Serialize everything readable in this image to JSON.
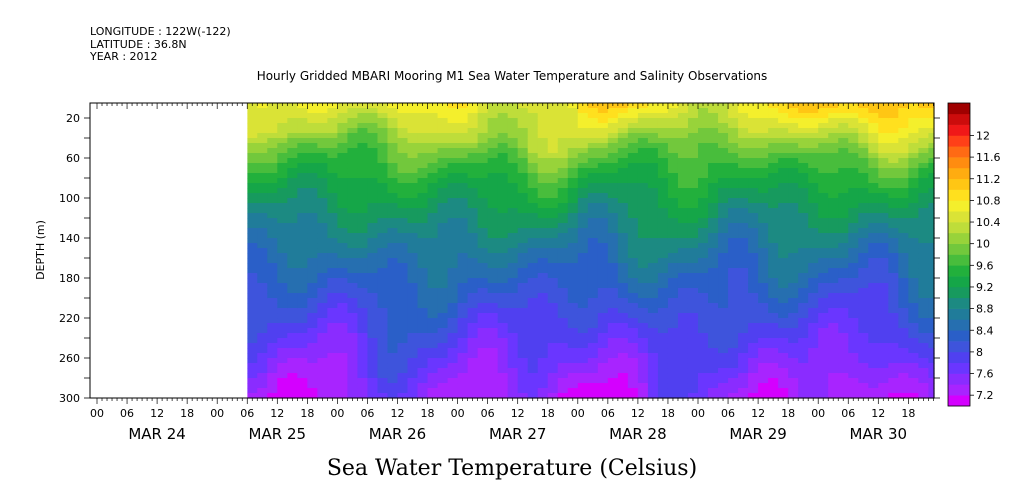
{
  "header": {
    "longitude": "LONGITUDE : 122W(-122)",
    "latitude": "LATITUDE : 36.8N",
    "year": "YEAR : 2012"
  },
  "chart_data": {
    "type": "heatmap",
    "title": "Hourly Gridded MBARI Mooring M1 Sea Water Temperature and Salinity Observations",
    "xlabel": "",
    "ylabel": "DEPTH (m)",
    "bottom_label": "Sea Water Temperature (Celsius)",
    "x_hours": [
      "00",
      "06",
      "12",
      "18",
      "00",
      "06",
      "12",
      "18",
      "00",
      "06",
      "12",
      "18",
      "00",
      "06",
      "12",
      "18",
      "00",
      "06",
      "12",
      "18",
      "00",
      "06",
      "12",
      "18",
      "00",
      "06",
      "12",
      "18"
    ],
    "day_labels": [
      "MAR 24",
      "MAR 25",
      "MAR 26",
      "MAR 27",
      "MAR 28",
      "MAR 29",
      "MAR 30"
    ],
    "depth_ticks": [
      20,
      60,
      100,
      140,
      180,
      220,
      260,
      300
    ],
    "ylim": [
      300,
      5
    ],
    "colorbar_levels": [
      7.2,
      7.4,
      7.6,
      7.8,
      8,
      8.2,
      8.4,
      8.6,
      8.8,
      9,
      9.2,
      9.4,
      9.6,
      9.8,
      10,
      10.2,
      10.4,
      10.6,
      10.8,
      11,
      11.2,
      11.4,
      11.6,
      11.8,
      12,
      12.2
    ],
    "colorbar_labels": [
      "7.2",
      "7.6",
      "8",
      "8.4",
      "8.8",
      "9.2",
      "9.6",
      "10",
      "10.4",
      "10.8",
      "11.2",
      "11.6",
      "12"
    ],
    "colors": [
      "#d400ff",
      "#a824ff",
      "#8a2cff",
      "#6a36ff",
      "#5040f0",
      "#3e54dc",
      "#2a5fc8",
      "#266fb0",
      "#207c9a",
      "#1c8a82",
      "#179a5e",
      "#15a648",
      "#22b03c",
      "#48bd3c",
      "#72c83c",
      "#98d33a",
      "#bedd3a",
      "#dae336",
      "#f4ef2c",
      "#ffe01e",
      "#ffc614",
      "#ffac10",
      "#ff8c10",
      "#ff6a14",
      "#ff4018",
      "#f01818",
      "#cc0c0c",
      "#a00000"
    ],
    "missing_color": "#ffffff"
  }
}
